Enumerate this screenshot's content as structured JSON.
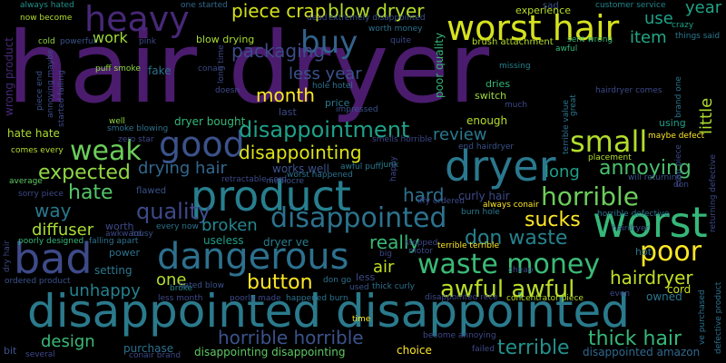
{
  "title": "",
  "words": [
    {
      "text": "hair dryer",
      "color": "#4b1c6e"
    },
    {
      "text": "disappointed disappointed",
      "color": "#2a7a8c"
    },
    {
      "text": "product",
      "color": "#277f8e"
    },
    {
      "text": "dangerous",
      "color": "#2d708e"
    },
    {
      "text": "worst hair",
      "color": "#d6e21f"
    },
    {
      "text": "dryer",
      "color": "#2a788e"
    },
    {
      "text": "worst",
      "color": "#35b779"
    },
    {
      "text": "bad",
      "color": "#3e4a89"
    },
    {
      "text": "heavy",
      "color": "#482878"
    },
    {
      "text": "good",
      "color": "#3b528b"
    },
    {
      "text": "buy",
      "color": "#33638d"
    },
    {
      "text": "disappointed",
      "color": "#2c728e"
    },
    {
      "text": "waste money",
      "color": "#3aba76"
    },
    {
      "text": "horrible",
      "color": "#6ccd5a"
    },
    {
      "text": "small",
      "color": "#b2dd2d"
    },
    {
      "text": "weak",
      "color": "#6ccd5a"
    },
    {
      "text": "poor",
      "color": "#fde725"
    },
    {
      "text": "disappointment",
      "color": "#1fa188"
    },
    {
      "text": "hate",
      "color": "#54c568"
    },
    {
      "text": "expected",
      "color": "#90d743"
    },
    {
      "text": "annoying",
      "color": "#4ac16d"
    },
    {
      "text": "quality",
      "color": "#3e4989"
    },
    {
      "text": "sucks",
      "color": "#fde725"
    },
    {
      "text": "disappointing",
      "color": "#dde318"
    },
    {
      "text": "awful awful",
      "color": "#b8de29"
    },
    {
      "text": "don waste",
      "color": "#26828e"
    },
    {
      "text": "thick hair",
      "color": "#35b779"
    },
    {
      "text": "hairdryer",
      "color": "#c2df23"
    },
    {
      "text": "horrible horrible",
      "color": "#3b528b"
    },
    {
      "text": "terrible",
      "color": "#21918c"
    },
    {
      "text": "button",
      "color": "#fde725"
    },
    {
      "text": "drying hair",
      "color": "#31688e"
    },
    {
      "text": "packaging",
      "color": "#3e4a89"
    },
    {
      "text": "piece crap",
      "color": "#d2e21b"
    },
    {
      "text": "blow dryer",
      "color": "#b5de2b"
    },
    {
      "text": "really",
      "color": "#3aba76"
    },
    {
      "text": "hard",
      "color": "#2c728e"
    },
    {
      "text": "diffuser",
      "color": "#a8db34"
    },
    {
      "text": "broken",
      "color": "#24868e"
    },
    {
      "text": "way",
      "color": "#29798e"
    },
    {
      "text": "month",
      "color": "#fde725"
    },
    {
      "text": "less year",
      "color": "#3b528b"
    },
    {
      "text": "long",
      "color": "#1f9e89"
    },
    {
      "text": "review",
      "color": "#2a788e"
    },
    {
      "text": "unhappy",
      "color": "#26828e"
    },
    {
      "text": "design",
      "color": "#3aba76"
    },
    {
      "text": "air",
      "color": "#c2df23"
    },
    {
      "text": "one",
      "color": "#b2dd2d"
    },
    {
      "text": "work",
      "color": "#9fda3a"
    },
    {
      "text": "use",
      "color": "#1fa188"
    },
    {
      "text": "year",
      "color": "#20a386"
    },
    {
      "text": "item",
      "color": "#22a785"
    },
    {
      "text": "little",
      "color": "#addc30"
    },
    {
      "text": "experience",
      "color": "#b8de29"
    },
    {
      "text": "dryer bought",
      "color": "#35b779"
    },
    {
      "text": "purchase",
      "color": "#2c728e"
    },
    {
      "text": "disappointing disappointing",
      "color": "#5ec962"
    },
    {
      "text": "disappointed amazon",
      "color": "#31688e"
    },
    {
      "text": "choice",
      "color": "#fde725"
    },
    {
      "text": "setting",
      "color": "#2a788e"
    },
    {
      "text": "cord",
      "color": "#cae11f"
    },
    {
      "text": "owned",
      "color": "#2a788e"
    },
    {
      "text": "dryer ve",
      "color": "#287d8e"
    },
    {
      "text": "useless",
      "color": "#1f9e89"
    },
    {
      "text": "works well",
      "color": "#3b528b"
    },
    {
      "text": "enough",
      "color": "#b5de2b"
    },
    {
      "text": "poor quality",
      "color": "#35b779"
    },
    {
      "text": "fake",
      "color": "#2c728e"
    },
    {
      "text": "wrong product",
      "color": "#482878"
    },
    {
      "text": "curly hair",
      "color": "#3e4989"
    },
    {
      "text": "hate hate",
      "color": "#addc30"
    },
    {
      "text": "worth",
      "color": "#3e4a89"
    },
    {
      "text": "power",
      "color": "#2c728e"
    },
    {
      "text": "price",
      "color": "#2a788e"
    },
    {
      "text": "dries",
      "color": "#35b779"
    },
    {
      "text": "switch",
      "color": "#9fda3a"
    },
    {
      "text": "using",
      "color": "#1f9e89"
    },
    {
      "text": "blow drying",
      "color": "#a8db34"
    },
    {
      "text": "hot",
      "color": "#2c728e"
    },
    {
      "text": "brush attachment",
      "color": "#b5de2b"
    },
    {
      "text": "sad",
      "color": "#3b528b"
    },
    {
      "text": "always hated",
      "color": "#21918c"
    },
    {
      "text": "now become",
      "color": "#b2dd2d"
    },
    {
      "text": "one started",
      "color": "#31688e"
    },
    {
      "text": "customer service",
      "color": "#24868e"
    },
    {
      "text": "crazy",
      "color": "#20a386"
    },
    {
      "text": "things said",
      "color": "#2a788e"
    },
    {
      "text": "sent wrong",
      "color": "#35b779"
    },
    {
      "text": "missing",
      "color": "#26828e"
    },
    {
      "text": "awful",
      "color": "#35b779"
    },
    {
      "text": "hole hotel",
      "color": "#2d708e"
    },
    {
      "text": "impressed",
      "color": "#3b528b"
    },
    {
      "text": "last",
      "color": "#3e4989"
    },
    {
      "text": "puff smoke",
      "color": "#90d743"
    },
    {
      "text": "mediocre",
      "color": "#3b528b"
    },
    {
      "text": "worst happened",
      "color": "#2c728e"
    },
    {
      "text": "awful puff",
      "color": "#2a788e"
    },
    {
      "text": "junk",
      "color": "#24868e"
    },
    {
      "text": "smoke blowing",
      "color": "#2c728e"
    },
    {
      "text": "well",
      "color": "#90d743"
    },
    {
      "text": "zero star",
      "color": "#3e4989"
    },
    {
      "text": "flawed",
      "color": "#3b528b"
    },
    {
      "text": "comes every",
      "color": "#b5de2b"
    },
    {
      "text": "average",
      "color": "#5ec962"
    },
    {
      "text": "sorry piece",
      "color": "#3e4989"
    },
    {
      "text": "awkward",
      "color": "#3e4989"
    },
    {
      "text": "every now",
      "color": "#2c728e"
    },
    {
      "text": "falling apart",
      "color": "#2c728e"
    },
    {
      "text": "lousy",
      "color": "#3b528b"
    },
    {
      "text": "poorly designed",
      "color": "#35b779"
    },
    {
      "text": "broke",
      "color": "#24868e"
    },
    {
      "text": "ordered product",
      "color": "#3b528b"
    },
    {
      "text": "less month",
      "color": "#3e4989"
    },
    {
      "text": "hated blow",
      "color": "#3b528b"
    },
    {
      "text": "poorly made",
      "color": "#3e4989"
    },
    {
      "text": "happened burn",
      "color": "#2c728e"
    },
    {
      "text": "dead",
      "color": "#3e4989"
    },
    {
      "text": "extremely disappointed",
      "color": "#3b528b"
    },
    {
      "text": "worth money",
      "color": "#2c728e"
    },
    {
      "text": "quite",
      "color": "#3e4989"
    },
    {
      "text": "always conair",
      "color": "#fde725"
    },
    {
      "text": "burn hole",
      "color": "#2a788e"
    },
    {
      "text": "iffy ordered",
      "color": "#3e4989"
    },
    {
      "text": "terrible terrible",
      "color": "#fde725"
    },
    {
      "text": "end hairdryer",
      "color": "#3b528b"
    },
    {
      "text": "placement",
      "color": "#b5de2b"
    },
    {
      "text": "hairdryer comes",
      "color": "#3e4989"
    },
    {
      "text": "maybe defect",
      "color": "#fde725"
    },
    {
      "text": "will returning",
      "color": "#3b528b"
    },
    {
      "text": "hairdryer",
      "color": "#3b528b"
    },
    {
      "text": "don go",
      "color": "#2c728e"
    },
    {
      "text": "less",
      "color": "#3e4989"
    },
    {
      "text": "thick curly",
      "color": "#2c728e"
    },
    {
      "text": "disappointed rece",
      "color": "#3e4989"
    },
    {
      "text": "concentrator piece",
      "color": "#b5de2b"
    },
    {
      "text": "even",
      "color": "#3e4989"
    },
    {
      "text": "become annoying",
      "color": "#3e4989"
    },
    {
      "text": "time",
      "color": "#fde725"
    },
    {
      "text": "used",
      "color": "#3b528b"
    },
    {
      "text": "failed",
      "color": "#3e4989"
    },
    {
      "text": "bit",
      "color": "#3b528b"
    },
    {
      "text": "several",
      "color": "#3e4989"
    },
    {
      "text": "conair brand",
      "color": "#3e4989"
    },
    {
      "text": "cold",
      "color": "#90d743"
    },
    {
      "text": "powerful",
      "color": "#3b528b"
    },
    {
      "text": "pink",
      "color": "#3e4989"
    },
    {
      "text": "piece end",
      "color": "#3b528b"
    },
    {
      "text": "annoying maybe",
      "color": "#3e4989"
    },
    {
      "text": "started falling",
      "color": "#3e4989"
    },
    {
      "text": "doesn",
      "color": "#3e4989"
    },
    {
      "text": "long time",
      "color": "#3e4989"
    },
    {
      "text": "conair",
      "color": "#3e4989"
    },
    {
      "text": "happy",
      "color": "#3e4989"
    },
    {
      "text": "retractable cord",
      "color": "#3e4989"
    },
    {
      "text": "smells horrible",
      "color": "#3e4989"
    },
    {
      "text": "stopped",
      "color": "#3e4989"
    },
    {
      "text": "motor",
      "color": "#3e4989"
    },
    {
      "text": "big",
      "color": "#3e4989"
    },
    {
      "text": "terrible value",
      "color": "#2c728e"
    },
    {
      "text": "great",
      "color": "#2a788e"
    },
    {
      "text": "much",
      "color": "#3e4989"
    },
    {
      "text": "horrible defective",
      "color": "#2c728e"
    },
    {
      "text": "crap piece",
      "color": "#3e4989"
    },
    {
      "text": "brand one",
      "color": "#2c728e"
    },
    {
      "text": "ve purchased",
      "color": "#2c728e"
    },
    {
      "text": "defective product",
      "color": "#2c728e"
    },
    {
      "text": "returning defective",
      "color": "#3e4989"
    },
    {
      "text": "don",
      "color": "#3e4989"
    },
    {
      "text": "dry hair",
      "color": "#3e4989"
    },
    {
      "text": "cheap",
      "color": "#3e4989"
    }
  ]
}
